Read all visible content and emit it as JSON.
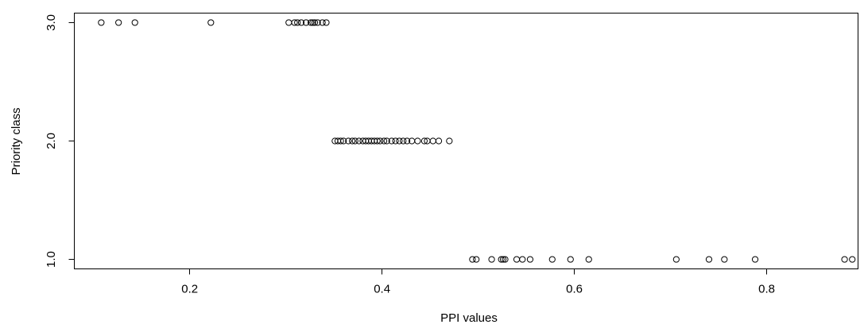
{
  "chart_data": {
    "type": "scatter",
    "title": "",
    "xlabel": "PPI values",
    "ylabel": "Priority class",
    "xlim": [
      0.08,
      0.895
    ],
    "ylim": [
      0.92,
      3.08
    ],
    "x_ticks": [
      0.2,
      0.4,
      0.6,
      0.8
    ],
    "x_tick_labels": [
      "0.2",
      "0.4",
      "0.6",
      "0.8"
    ],
    "y_ticks": [
      1.0,
      2.0,
      3.0
    ],
    "y_tick_labels": [
      "1.0",
      "2.0",
      "3.0"
    ],
    "grid": false,
    "legend": "none",
    "marker": "open-circle",
    "series": [
      {
        "points": [
          [
            0.108,
            3
          ],
          [
            0.126,
            3
          ],
          [
            0.143,
            3
          ],
          [
            0.222,
            3
          ],
          [
            0.303,
            3
          ],
          [
            0.309,
            3
          ],
          [
            0.312,
            3
          ],
          [
            0.316,
            3
          ],
          [
            0.321,
            3
          ],
          [
            0.326,
            3
          ],
          [
            0.328,
            3
          ],
          [
            0.33,
            3
          ],
          [
            0.333,
            3
          ],
          [
            0.338,
            3
          ],
          [
            0.342,
            3
          ],
          [
            0.351,
            2
          ],
          [
            0.354,
            2
          ],
          [
            0.357,
            2
          ],
          [
            0.36,
            2
          ],
          [
            0.365,
            2
          ],
          [
            0.369,
            2
          ],
          [
            0.372,
            2
          ],
          [
            0.376,
            2
          ],
          [
            0.38,
            2
          ],
          [
            0.383,
            2
          ],
          [
            0.386,
            2
          ],
          [
            0.389,
            2
          ],
          [
            0.392,
            2
          ],
          [
            0.395,
            2
          ],
          [
            0.398,
            2
          ],
          [
            0.402,
            2
          ],
          [
            0.405,
            2
          ],
          [
            0.41,
            2
          ],
          [
            0.414,
            2
          ],
          [
            0.418,
            2
          ],
          [
            0.422,
            2
          ],
          [
            0.426,
            2
          ],
          [
            0.431,
            2
          ],
          [
            0.437,
            2
          ],
          [
            0.444,
            2
          ],
          [
            0.447,
            2
          ],
          [
            0.453,
            2
          ],
          [
            0.459,
            2
          ],
          [
            0.47,
            2
          ],
          [
            0.494,
            1
          ],
          [
            0.498,
            1
          ],
          [
            0.514,
            1
          ],
          [
            0.524,
            1
          ],
          [
            0.526,
            1
          ],
          [
            0.528,
            1
          ],
          [
            0.54,
            1
          ],
          [
            0.546,
            1
          ],
          [
            0.554,
            1
          ],
          [
            0.577,
            1
          ],
          [
            0.596,
            1
          ],
          [
            0.615,
            1
          ],
          [
            0.706,
            1
          ],
          [
            0.74,
            1
          ],
          [
            0.756,
            1
          ],
          [
            0.788,
            1
          ],
          [
            0.881,
            1
          ],
          [
            0.889,
            1
          ]
        ]
      }
    ]
  }
}
